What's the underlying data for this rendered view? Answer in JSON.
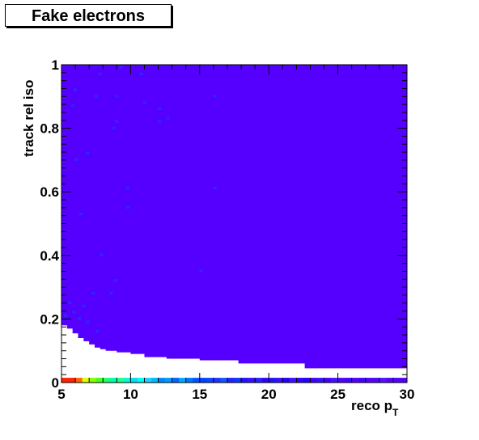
{
  "chart_data": {
    "type": "heatmap",
    "title": "Fake electrons",
    "xlabel": "reco p",
    "xlabel_sub": "T",
    "ylabel": "track rel iso",
    "xlim": [
      5,
      30
    ],
    "ylim": [
      0,
      1
    ],
    "x_ticks": [
      {
        "v": 5,
        "label": "5"
      },
      {
        "v": 10,
        "label": "10"
      },
      {
        "v": 15,
        "label": "15"
      },
      {
        "v": 20,
        "label": "20"
      },
      {
        "v": 25,
        "label": "25"
      },
      {
        "v": 30,
        "label": "30"
      }
    ],
    "y_ticks": [
      {
        "v": 0,
        "label": "0"
      },
      {
        "v": 0.2,
        "label": "0.2"
      },
      {
        "v": 0.4,
        "label": "0.4"
      },
      {
        "v": 0.6,
        "label": "0.6"
      },
      {
        "v": 0.8,
        "label": "0.8"
      },
      {
        "v": 1,
        "label": "1"
      }
    ],
    "fill_color": "#5500ff",
    "hot_color": "#2a2aff",
    "populated_region": {
      "description_free": true,
      "lower_boundary": [
        {
          "x": 5.0,
          "y": 0.18
        },
        {
          "x": 5.4,
          "y": 0.17
        },
        {
          "x": 5.8,
          "y": 0.155
        },
        {
          "x": 6.2,
          "y": 0.14
        },
        {
          "x": 6.6,
          "y": 0.13
        },
        {
          "x": 7.0,
          "y": 0.12
        },
        {
          "x": 7.4,
          "y": 0.11
        },
        {
          "x": 7.8,
          "y": 0.105
        },
        {
          "x": 8.2,
          "y": 0.1
        },
        {
          "x": 9.0,
          "y": 0.095
        },
        {
          "x": 10.0,
          "y": 0.09
        },
        {
          "x": 11.0,
          "y": 0.08
        },
        {
          "x": 12.6,
          "y": 0.075
        },
        {
          "x": 15.0,
          "y": 0.07
        },
        {
          "x": 17.8,
          "y": 0.06
        },
        {
          "x": 22.6,
          "y": 0.045
        },
        {
          "x": 30.0,
          "y": 0.035
        }
      ]
    },
    "hot_cells": [
      {
        "x": 5.3,
        "y": 0.21
      },
      {
        "x": 5.6,
        "y": 0.25
      },
      {
        "x": 5.9,
        "y": 0.22
      },
      {
        "x": 6.3,
        "y": 0.2
      },
      {
        "x": 6.6,
        "y": 0.24
      },
      {
        "x": 6.9,
        "y": 0.19
      },
      {
        "x": 7.3,
        "y": 0.28
      },
      {
        "x": 7.6,
        "y": 0.16
      },
      {
        "x": 8.6,
        "y": 0.28
      },
      {
        "x": 8.9,
        "y": 0.32
      },
      {
        "x": 7.9,
        "y": 0.4
      },
      {
        "x": 6.4,
        "y": 0.53
      },
      {
        "x": 9.8,
        "y": 0.55
      },
      {
        "x": 9.8,
        "y": 0.61
      },
      {
        "x": 16.1,
        "y": 0.61
      },
      {
        "x": 15.1,
        "y": 0.35
      },
      {
        "x": 5.8,
        "y": 0.87
      },
      {
        "x": 6.0,
        "y": 0.92
      },
      {
        "x": 6.9,
        "y": 0.72
      },
      {
        "x": 6.1,
        "y": 0.7
      },
      {
        "x": 7.5,
        "y": 0.9
      },
      {
        "x": 9.0,
        "y": 0.9
      },
      {
        "x": 9.0,
        "y": 0.82
      },
      {
        "x": 8.8,
        "y": 0.8
      },
      {
        "x": 10.8,
        "y": 0.97
      },
      {
        "x": 11.0,
        "y": 0.88
      },
      {
        "x": 12.1,
        "y": 0.86
      },
      {
        "x": 12.1,
        "y": 0.82
      },
      {
        "x": 12.7,
        "y": 0.83
      },
      {
        "x": 7.8,
        "y": 0.97
      },
      {
        "x": 9.3,
        "y": 0.99
      },
      {
        "x": 16.1,
        "y": 0.9
      }
    ],
    "bottom_row_colors": [
      "#ff2200",
      "#ff2200",
      "#ff6600",
      "#ddff00",
      "#88ff00",
      "#44ff22",
      "#22ff66",
      "#00ffaa",
      "#22ff88",
      "#00ffcc",
      "#00ddff",
      "#00ffee",
      "#22ccff",
      "#00bbff",
      "#0088ff",
      "#0099ff",
      "#0066ff",
      "#00aaff",
      "#0077ff",
      "#0055ff",
      "#0044ff",
      "#1144ff",
      "#2233ff",
      "#1155ff",
      "#2222ff",
      "#1133ff",
      "#2211ff",
      "#3311ff",
      "#2222ff",
      "#3300ff",
      "#2211ff",
      "#3311ff",
      "#2200ff",
      "#4411ff",
      "#3300ff",
      "#2200ff",
      "#4400ff",
      "#3311ff",
      "#4400ff",
      "#4411ff",
      "#5500ff",
      "#4400ff",
      "#5500ff",
      "#4400ff",
      "#5500ff",
      "#5500ff",
      "#5511ff",
      "#5500ff",
      "#5500ff",
      "#5500ff"
    ],
    "grid": false,
    "legend": "none"
  }
}
